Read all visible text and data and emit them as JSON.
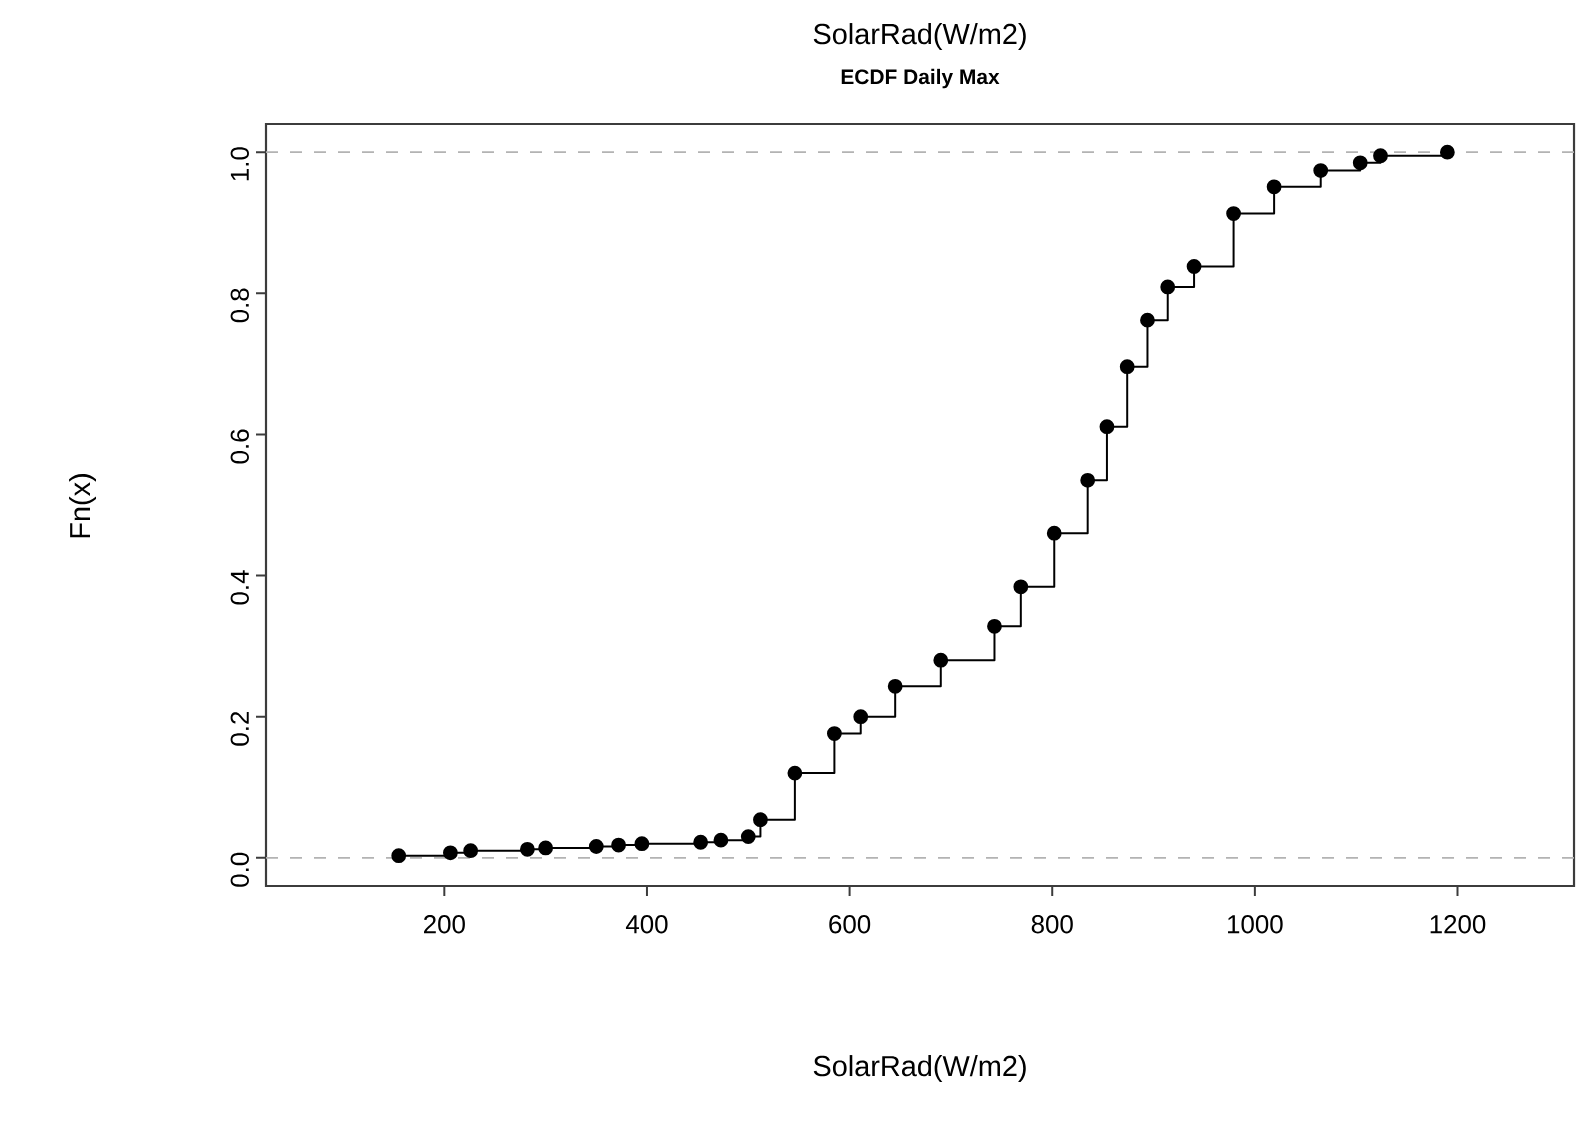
{
  "chart_data": {
    "type": "step",
    "title": "SolarRad(W/m2)",
    "subtitle": "ECDF Daily Max",
    "xlabel": "SolarRad(W/m2)",
    "ylabel": "Fn(x)",
    "x": [
      155,
      206,
      226,
      282,
      300,
      350,
      372,
      395,
      453,
      473,
      500,
      512,
      546,
      585,
      611,
      645,
      690,
      743,
      769,
      802,
      835,
      854,
      874,
      894,
      914,
      940,
      979,
      1019,
      1065,
      1104,
      1124,
      1190
    ],
    "series": [
      {
        "color": "#000000",
        "values": [
          0.003,
          0.007,
          0.01,
          0.012,
          0.014,
          0.016,
          0.018,
          0.02,
          0.022,
          0.025,
          0.03,
          0.054,
          0.12,
          0.176,
          0.2,
          0.243,
          0.28,
          0.328,
          0.384,
          0.46,
          0.535,
          0.611,
          0.696,
          0.762,
          0.809,
          0.838,
          0.913,
          0.951,
          0.974,
          0.985,
          0.995,
          1.0
        ]
      }
    ],
    "xlim": [
      24,
      1315
    ],
    "ylim": [
      -0.04,
      1.04
    ],
    "xticks": [
      200,
      400,
      600,
      800,
      1000,
      1200
    ],
    "yticks": [
      {
        "value": 0,
        "label": "0.0"
      },
      0.2,
      0.4,
      0.6,
      0.8,
      {
        "value": 1,
        "label": "1.0"
      }
    ],
    "marker": "circle",
    "line_style": "solid",
    "ref_lines": [
      {
        "axis": "y",
        "value": 0,
        "color": "#b3b3b3",
        "line_style": "dashed"
      },
      {
        "axis": "y",
        "value": 1,
        "color": "#b3b3b3",
        "line_style": "dashed"
      }
    ]
  }
}
